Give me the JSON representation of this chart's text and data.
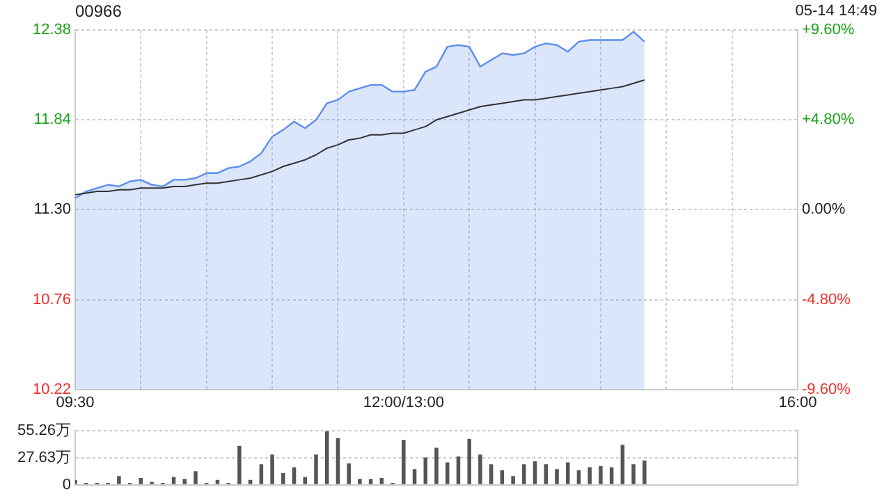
{
  "chart_data": [
    {
      "type": "line",
      "title": "00966",
      "annotations": [
        "05-14 14:49"
      ],
      "categories": [
        "09:30",
        null,
        null,
        null,
        null,
        null,
        null,
        null,
        null,
        null,
        null,
        null,
        null,
        null,
        null,
        null,
        null,
        null,
        null,
        null,
        null,
        null,
        null,
        null,
        null,
        null,
        null,
        null,
        null,
        null,
        "12:00/13:00",
        null,
        null,
        null,
        null,
        null,
        null,
        null,
        null,
        null,
        null,
        null,
        null,
        null,
        null,
        null,
        null,
        null,
        null,
        null,
        null,
        null,
        null,
        null,
        null,
        null,
        null,
        null,
        null,
        null,
        null,
        null,
        null,
        null,
        null,
        null,
        "16:00"
      ],
      "series": [
        {
          "type": "area",
          "color": "#5b8def",
          "values": [
            11.37,
            11.41,
            11.43,
            11.45,
            11.44,
            11.47,
            11.48,
            11.45,
            11.44,
            11.48,
            11.48,
            11.49,
            11.52,
            11.52,
            11.55,
            11.56,
            11.59,
            11.64,
            11.74,
            11.78,
            11.83,
            11.79,
            11.84,
            11.94,
            11.96,
            12.01,
            12.03,
            12.05,
            12.05,
            12.01,
            12.01,
            12.02,
            12.13,
            12.16,
            12.28,
            12.29,
            12.28,
            12.16,
            12.2,
            12.24,
            12.23,
            12.24,
            12.28,
            12.3,
            12.29,
            12.25,
            12.31,
            12.32,
            12.32,
            12.32,
            12.32,
            12.37,
            12.31,
            null,
            null,
            null,
            null,
            null,
            null,
            null,
            null,
            null,
            null,
            null,
            null,
            null,
            null
          ]
        },
        {
          "type": "line",
          "color": "#333333",
          "values": [
            11.39,
            11.4,
            11.41,
            11.41,
            11.42,
            11.42,
            11.43,
            11.43,
            11.43,
            11.44,
            11.44,
            11.45,
            11.46,
            11.46,
            11.47,
            11.48,
            11.49,
            11.51,
            11.53,
            11.56,
            11.58,
            11.6,
            11.63,
            11.67,
            11.69,
            11.72,
            11.73,
            11.75,
            11.75,
            11.76,
            11.76,
            11.78,
            11.8,
            11.84,
            11.86,
            11.88,
            11.9,
            11.92,
            11.93,
            11.94,
            11.95,
            11.96,
            11.96,
            11.97,
            11.98,
            11.99,
            12.0,
            12.01,
            12.02,
            12.03,
            12.04,
            12.06,
            12.08,
            null,
            null,
            null,
            null,
            null,
            null,
            null,
            null,
            null,
            null,
            null,
            null,
            null,
            null
          ]
        }
      ],
      "ylim": [
        10.22,
        12.38
      ],
      "yticks": [
        10.22,
        10.76,
        {
          "value": 11.3,
          "label": "11.30"
        },
        11.84,
        12.38
      ],
      "y2lim": [
        -9.6,
        9.6
      ],
      "y2ticks": [
        {
          "value": -9.6,
          "label": "-9.60%"
        },
        {
          "value": -4.8,
          "label": "-4.80%"
        },
        {
          "value": 0,
          "label": "0.00%"
        },
        {
          "value": 4.8,
          "label": "+4.80%"
        },
        {
          "value": 9.6,
          "label": "+9.60%"
        }
      ],
      "grid": true,
      "legend": false,
      "marker": "none",
      "line_style": "solid"
    },
    {
      "type": "bar",
      "color": "#555555",
      "categories": [
        null,
        null,
        null,
        null,
        null,
        null,
        null,
        null,
        null,
        null,
        null,
        null,
        null,
        null,
        null,
        null,
        null,
        null,
        null,
        null,
        null,
        null,
        null,
        null,
        null,
        null,
        null,
        null,
        null,
        null,
        null,
        null,
        null,
        null,
        null,
        null,
        null,
        null,
        null,
        null,
        null,
        null,
        null,
        null,
        null,
        null,
        null,
        null,
        null,
        null,
        null,
        null,
        null,
        null,
        null,
        null,
        null,
        null,
        null,
        null,
        null,
        null,
        null,
        null,
        null,
        null,
        null
      ],
      "values": [
        5,
        2,
        2,
        2,
        9,
        2,
        7,
        3,
        2,
        8,
        6,
        14,
        2,
        5,
        2,
        40,
        5,
        21,
        31,
        12,
        18,
        8,
        31,
        55,
        48,
        22,
        6,
        6,
        7,
        2,
        46,
        16,
        28,
        38,
        23,
        29,
        47,
        31,
        21,
        15,
        9,
        21,
        24,
        21,
        16,
        23,
        15,
        18,
        19,
        18,
        41,
        21,
        25,
        null,
        null,
        null,
        null,
        null,
        null,
        null,
        null,
        null,
        null,
        null,
        null,
        null,
        null
      ],
      "ylim": [
        0,
        55.26
      ],
      "yticks": [
        0,
        {
          "value": 27.63,
          "label": "27.63万"
        },
        {
          "value": 55.26,
          "label": "55.26万"
        }
      ],
      "grid": "y",
      "legend": false,
      "tick_labels": "y"
    }
  ]
}
